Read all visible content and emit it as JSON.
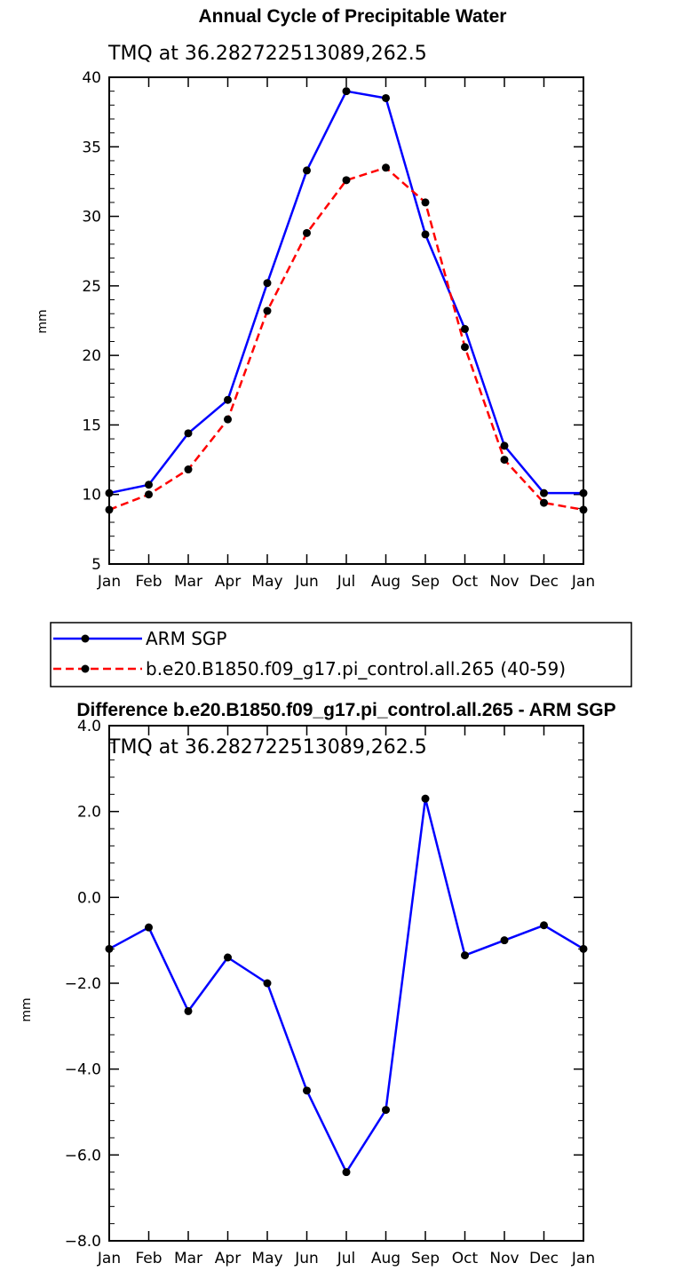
{
  "chart_data": [
    {
      "type": "line",
      "title": "Annual Cycle of Precipitable Water",
      "subtitle": "TMQ at 36.282722513089,262.5",
      "ylabel": "mm",
      "categories": [
        "Jan",
        "Feb",
        "Mar",
        "Apr",
        "May",
        "Jun",
        "Jul",
        "Aug",
        "Sep",
        "Oct",
        "Nov",
        "Dec",
        "Jan"
      ],
      "ylim": [
        5,
        40
      ],
      "yticks": [
        5,
        10,
        15,
        20,
        25,
        30,
        35,
        40
      ],
      "ytick_labels": [
        "5",
        "10",
        "15",
        "20",
        "25",
        "30",
        "35",
        "40"
      ],
      "grid": false,
      "legend_position": "below",
      "series": [
        {
          "name": "ARM SGP",
          "color": "#0000ff",
          "dash": "solid",
          "values": [
            10.1,
            10.7,
            14.4,
            16.8,
            25.2,
            33.3,
            39.0,
            38.5,
            28.7,
            21.9,
            13.5,
            10.1,
            10.1
          ]
        },
        {
          "name": "b.e20.B1850.f09_g17.pi_control.all.265 (40-59)",
          "color": "#ff0000",
          "dash": "dashed",
          "values": [
            8.9,
            10.0,
            11.8,
            15.4,
            23.2,
            28.8,
            32.6,
            33.5,
            31.0,
            20.6,
            12.5,
            9.4,
            8.9
          ]
        }
      ]
    },
    {
      "type": "line",
      "title": "Difference b.e20.B1850.f09_g17.pi_control.all.265 - ARM SGP",
      "subtitle": "TMQ at 36.282722513089,262.5",
      "ylabel": "mm",
      "categories": [
        "Jan",
        "Feb",
        "Mar",
        "Apr",
        "May",
        "Jun",
        "Jul",
        "Aug",
        "Sep",
        "Oct",
        "Nov",
        "Dec",
        "Jan"
      ],
      "ylim": [
        -8,
        4
      ],
      "yticks": [
        -8,
        -6,
        -4,
        -2,
        0,
        2,
        4
      ],
      "ytick_labels": [
        "−8.0",
        "−6.0",
        "−4.0",
        "−2.0",
        "0.0",
        "2.0",
        "4.0"
      ],
      "grid": false,
      "series": [
        {
          "color": "#0000ff",
          "dash": "solid",
          "values": [
            -1.2,
            -0.7,
            -2.65,
            -1.4,
            -2.0,
            -4.5,
            -6.4,
            -4.95,
            2.3,
            -1.35,
            -1.0,
            -0.65,
            -1.2
          ]
        }
      ]
    }
  ]
}
